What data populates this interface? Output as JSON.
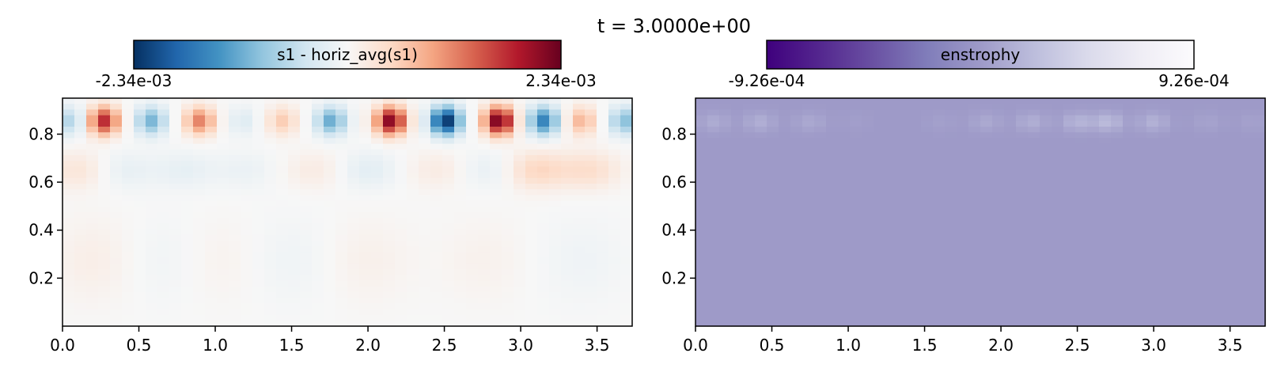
{
  "figure": {
    "title": "t = 3.0000e+00"
  },
  "chart_data": [
    {
      "type": "heatmap",
      "colorbar": {
        "label": "s1 - horiz_avg(s1)",
        "colormap": "RdBu_r",
        "min_label": "-2.34e-03",
        "max_label": "2.34e-03",
        "range": [
          -0.00234,
          0.00234
        ],
        "stops": [
          "#053061",
          "#2166ac",
          "#4393c3",
          "#92c5de",
          "#d1e5f0",
          "#f7f7f7",
          "#fddbc7",
          "#f4a582",
          "#d6604d",
          "#b2182b",
          "#67001f"
        ]
      },
      "xlim": [
        0,
        3.73
      ],
      "ylim": [
        0,
        0.95
      ],
      "xticks": [
        "0.0",
        "0.5",
        "1.0",
        "1.5",
        "2.0",
        "2.5",
        "3.0",
        "3.5"
      ],
      "yticks": [
        "0.2",
        "0.4",
        "0.6",
        "0.8"
      ],
      "grid": false,
      "surface_row": {
        "y_range": [
          0.78,
          0.93
        ],
        "x_centers": [
          0.05,
          0.27,
          0.58,
          0.9,
          1.18,
          1.44,
          1.76,
          2.15,
          2.51,
          2.86,
          3.15,
          3.4,
          3.68
        ],
        "values": [
          -0.0007,
          0.0018,
          -0.0011,
          0.0012,
          -0.0003,
          0.0006,
          -0.0012,
          0.0022,
          -0.00234,
          0.00234,
          -0.0016,
          0.0008,
          -0.001
        ]
      },
      "mid_layer": {
        "y_range": [
          0.55,
          0.75
        ],
        "x_centers": [
          0.1,
          0.4,
          0.8,
          1.2,
          1.65,
          2.0,
          2.45,
          2.8,
          3.1,
          3.45
        ],
        "values": [
          0.0003,
          -0.0002,
          -0.0002,
          -0.00015,
          0.0002,
          -0.00025,
          0.0002,
          -0.0002,
          0.0005,
          0.0004
        ]
      },
      "lower_layer": {
        "y_range": [
          0.05,
          0.5
        ],
        "x_centers": [
          0.2,
          0.7,
          1.0,
          1.5,
          2.0,
          2.75,
          3.4
        ],
        "values": [
          0.00015,
          -0.0001,
          0.0001,
          -0.0001,
          0.00012,
          0.0001,
          -0.0001
        ]
      }
    },
    {
      "type": "heatmap",
      "colorbar": {
        "label": "enstrophy",
        "colormap": "Purples_r",
        "min_label": "-9.26e-04",
        "max_label": "9.26e-04",
        "range": [
          -0.000926,
          0.000926
        ],
        "stops": [
          "#3f007d",
          "#54278f",
          "#6a51a3",
          "#807dba",
          "#9e9ac8",
          "#bcbddc",
          "#dadaeb",
          "#efedf5",
          "#fcfbfd"
        ]
      },
      "xlim": [
        0,
        3.73
      ],
      "ylim": [
        0,
        0.95
      ],
      "xticks": [
        "0.0",
        "0.5",
        "1.0",
        "1.5",
        "2.0",
        "2.5",
        "3.0",
        "3.5"
      ],
      "yticks": [
        "0.2",
        "0.4",
        "0.6",
        "0.8"
      ],
      "grid": false,
      "background_value": 0.0,
      "surface_row": {
        "y_range": [
          0.8,
          0.9
        ],
        "x_centers": [
          0.12,
          0.42,
          0.75,
          1.05,
          1.6,
          1.9,
          2.2,
          2.5,
          2.7,
          3.0,
          3.35,
          3.65
        ],
        "values": [
          0.00012,
          0.00014,
          0.0001,
          3e-05,
          4e-05,
          0.0001,
          0.00014,
          0.00018,
          0.00022,
          0.00016,
          6e-05,
          5e-05
        ]
      }
    }
  ]
}
